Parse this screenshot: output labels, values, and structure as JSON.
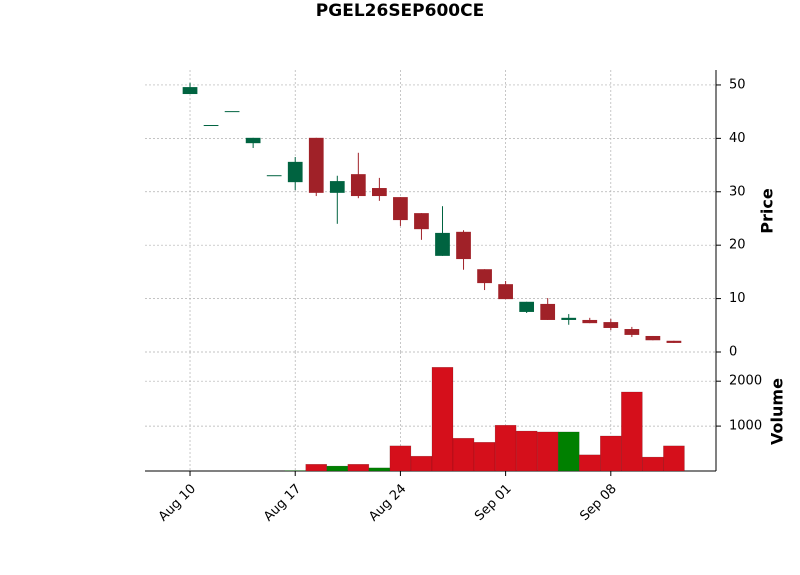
{
  "chart_data": {
    "type": "candlestick",
    "title": "PGEL26SEP600CE",
    "categories": [
      "Aug 10",
      null,
      null,
      null,
      null,
      "Aug 17",
      null,
      null,
      null,
      null,
      "Aug 24",
      null,
      null,
      null,
      null,
      "Sep 01",
      null,
      null,
      null,
      null,
      "Sep 08",
      null,
      null,
      null
    ],
    "open": [
      48.3,
      42.5,
      45.1,
      39.1,
      33.1,
      31.8,
      40.1,
      29.8,
      33.3,
      30.7,
      29.0,
      26.0,
      18.0,
      22.5,
      15.5,
      12.7,
      7.5,
      9.0,
      6.0,
      6.0,
      5.6,
      4.3,
      3.0,
      2.1
    ],
    "high": [
      50.4,
      42.5,
      45.1,
      40.1,
      33.1,
      36.5,
      40.1,
      33.0,
      37.3,
      32.6,
      29.0,
      26.0,
      27.3,
      22.8,
      15.5,
      13.3,
      9.4,
      10.1,
      7.1,
      6.4,
      6.2,
      4.7,
      3.0,
      2.1
    ],
    "low": [
      48.3,
      42.5,
      45.1,
      38.2,
      33.1,
      30.3,
      29.2,
      24.0,
      28.8,
      28.3,
      23.6,
      21.0,
      18.0,
      15.4,
      11.6,
      9.9,
      7.3,
      6.0,
      5.1,
      5.4,
      4.1,
      2.8,
      2.2,
      1.7
    ],
    "close": [
      49.6,
      42.5,
      45.1,
      40.1,
      33.1,
      35.6,
      29.8,
      32.0,
      29.2,
      29.2,
      24.7,
      23.0,
      22.3,
      17.4,
      12.9,
      9.9,
      9.4,
      6.0,
      6.4,
      5.4,
      4.5,
      3.2,
      2.2,
      1.7
    ],
    "up_color": "#006340",
    "down_color": "#a02128",
    "xlim": [
      -2.14,
      25
    ],
    "ylim": [
      0,
      52.8
    ],
    "yticks": [
      0,
      10,
      20,
      30,
      40,
      50
    ],
    "ylabel": "Price",
    "grid": true,
    "volume": {
      "values": [
        0,
        0,
        0,
        0,
        0,
        10,
        150,
        110,
        150,
        70,
        560,
        330,
        2310,
        730,
        640,
        1020,
        890,
        870,
        870,
        360,
        780,
        1760,
        310,
        560
      ],
      "ylim": [
        0,
        2650
      ],
      "yticks": [
        1000,
        2000
      ],
      "ylabel": "Volume",
      "up_color": "#008000",
      "down_color": "#d50f1b"
    }
  }
}
